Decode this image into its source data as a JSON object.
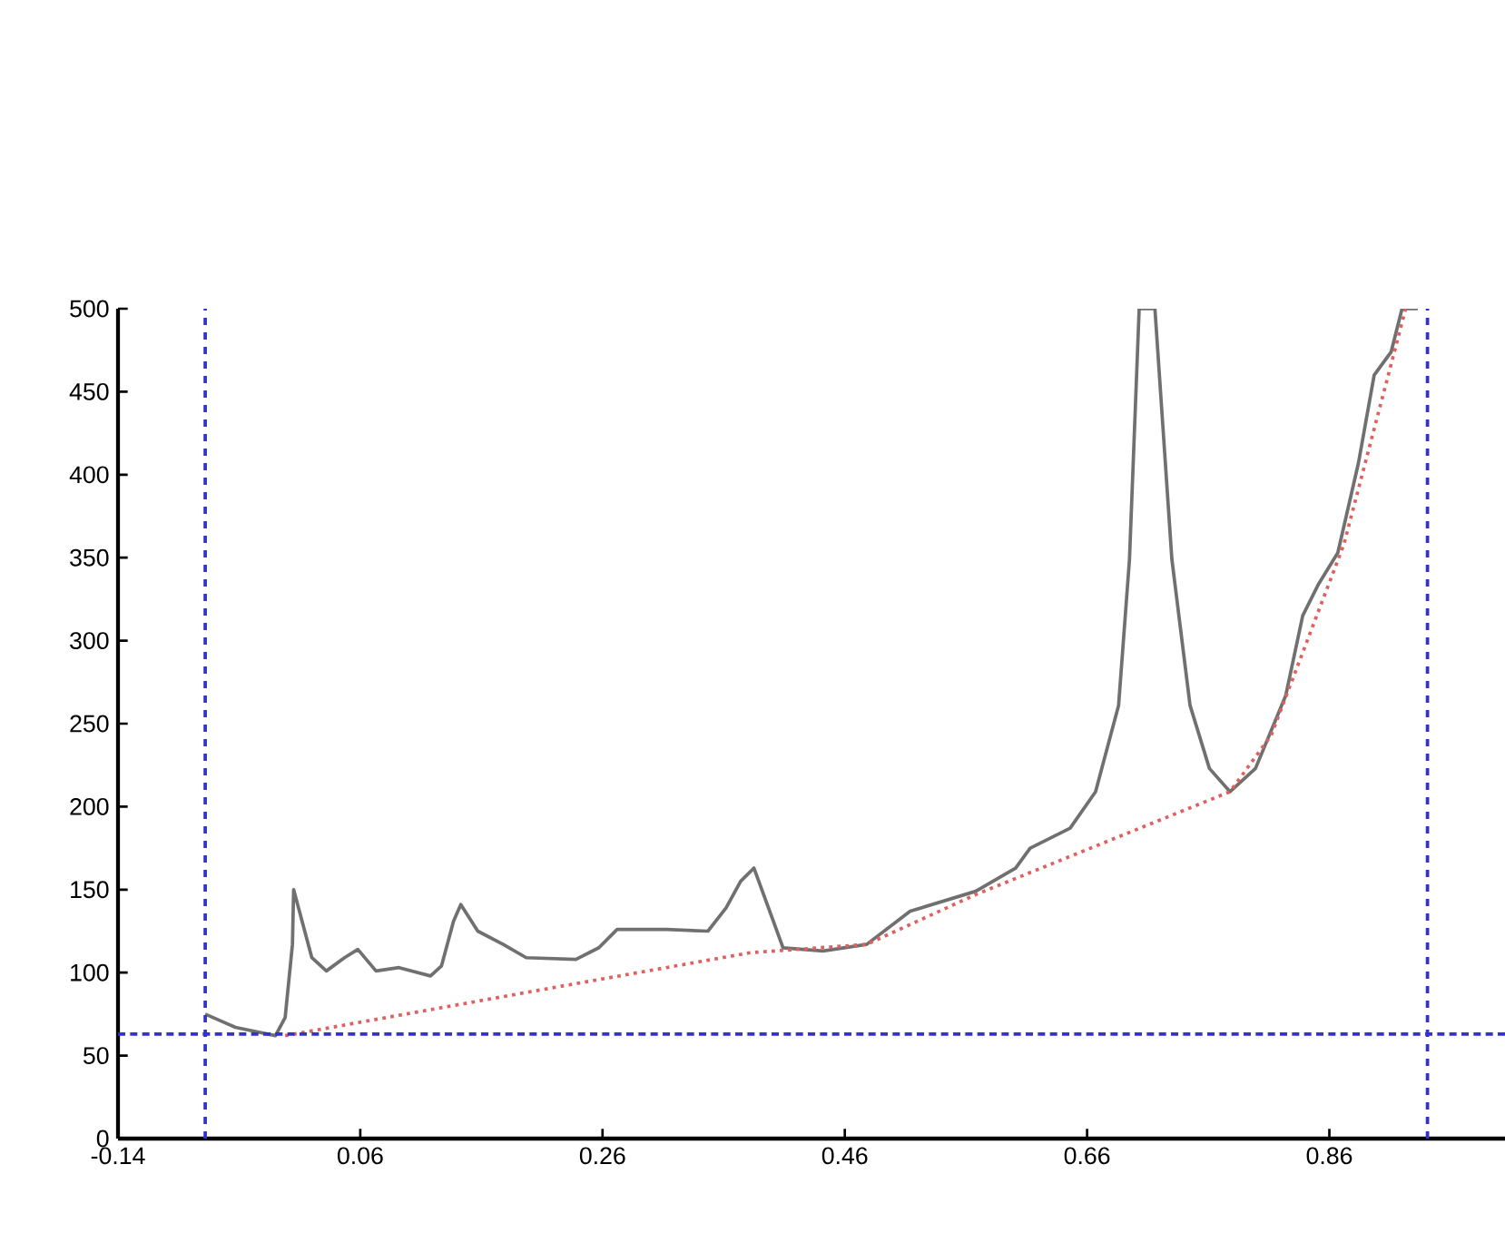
{
  "chart_data": {
    "type": "line",
    "xlim": [
      -0.14,
      1.005
    ],
    "ylim": [
      0,
      500
    ],
    "xticks": [
      -0.14,
      0.06,
      0.26,
      0.46,
      0.66,
      0.86
    ],
    "yticks": [
      0,
      50,
      100,
      150,
      200,
      250,
      300,
      350,
      400,
      450,
      500
    ],
    "grid": false,
    "marker": "none",
    "series": [
      {
        "color": "#707070",
        "line_style": "solid",
        "x": [
          -0.068,
          -0.043,
          -0.01,
          -0.002,
          0.004,
          0.005,
          0.02,
          0.032,
          0.047,
          0.058,
          0.073,
          0.092,
          0.118,
          0.127,
          0.137,
          0.143,
          0.157,
          0.178,
          0.197,
          0.238,
          0.257,
          0.272,
          0.313,
          0.347,
          0.362,
          0.374,
          0.385,
          0.409,
          0.442,
          0.478,
          0.514,
          0.568,
          0.601,
          0.613,
          0.646,
          0.667,
          0.686,
          0.695,
          0.703,
          0.716,
          0.73,
          0.745,
          0.761,
          0.778,
          0.799,
          0.824,
          0.838,
          0.851,
          0.867,
          0.884,
          0.897,
          0.911,
          0.92,
          0.933
        ],
        "values": [
          75,
          67,
          62,
          73,
          117,
          150,
          109,
          101,
          109,
          114,
          101,
          103,
          98,
          104,
          131,
          141,
          125,
          117,
          109,
          108,
          115,
          126,
          126,
          125,
          139,
          155,
          163,
          115,
          113,
          117,
          137,
          149,
          163,
          175,
          187,
          209,
          261,
          349,
          500,
          500,
          349,
          261,
          223,
          209,
          223,
          267,
          315,
          334,
          353,
          407,
          460,
          474,
          500,
          500
        ]
      },
      {
        "color": "#e06060",
        "line_style": "dotted",
        "x": [
          -0.002,
          0.212,
          0.382,
          0.478,
          0.568,
          0.778,
          0.812,
          0.872,
          0.923
        ],
        "values": [
          62,
          90,
          112,
          117,
          147,
          209,
          243,
          358,
          500
        ]
      }
    ],
    "ref_lines": [
      {
        "axis": "x",
        "value": -0.068,
        "color": "#3333cc",
        "line_style": "dashed"
      },
      {
        "axis": "x",
        "value": 0.941,
        "color": "#3333cc",
        "line_style": "dashed"
      },
      {
        "axis": "y",
        "value": 63,
        "color": "#3333cc",
        "line_style": "densely dashed"
      }
    ]
  }
}
